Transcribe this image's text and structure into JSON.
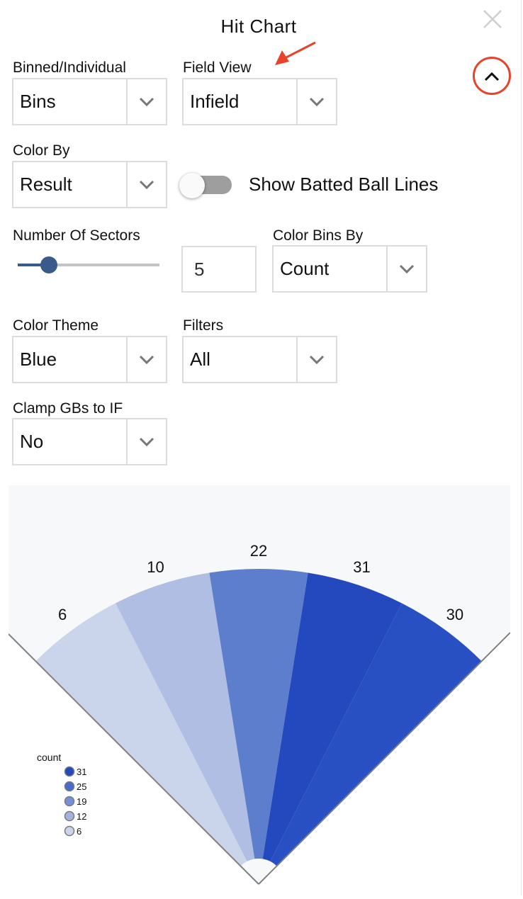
{
  "header": {
    "title": "Hit Chart",
    "close_icon": "close-icon",
    "collapse_icon": "chevron-up-icon",
    "highlight_color": "#e8432a"
  },
  "controls": {
    "binned_individual": {
      "label": "Binned/Individual",
      "value": "Bins"
    },
    "field_view": {
      "label": "Field View",
      "value": "Infield"
    },
    "color_by": {
      "label": "Color By",
      "value": "Result"
    },
    "batted_ball_lines": {
      "label": "Show Batted Ball Lines",
      "on": false
    },
    "number_of_sectors": {
      "label": "Number Of Sectors",
      "value": "5",
      "slider_fraction": 0.22
    },
    "color_bins_by": {
      "label": "Color Bins By",
      "value": "Count"
    },
    "color_theme": {
      "label": "Color Theme",
      "value": "Blue"
    },
    "filters": {
      "label": "Filters",
      "value": "All"
    },
    "clamp_gbs": {
      "label": "Clamp GBs to IF",
      "value": "No"
    }
  },
  "chart_data": {
    "type": "pie",
    "subtype": "spray-chart-sectors",
    "field_view": "Infield",
    "sectors": [
      {
        "value": 6,
        "color": "#cad5ec"
      },
      {
        "value": 10,
        "color": "#afbee2"
      },
      {
        "value": 22,
        "color": "#5d7dcd"
      },
      {
        "value": 31,
        "color": "#2449bf"
      },
      {
        "value": 30,
        "color": "#2850c2"
      }
    ],
    "data_labels": [
      "6",
      "10",
      "22",
      "31",
      "30"
    ],
    "legend": {
      "title": "count",
      "placement": "bottom-left",
      "items": [
        {
          "label": "31",
          "color": "#2449bf"
        },
        {
          "label": "25",
          "color": "#4a6bcb"
        },
        {
          "label": "19",
          "color": "#7590d6"
        },
        {
          "label": "12",
          "color": "#a2b3df"
        },
        {
          "label": "6",
          "color": "#cad5ec"
        }
      ]
    }
  }
}
